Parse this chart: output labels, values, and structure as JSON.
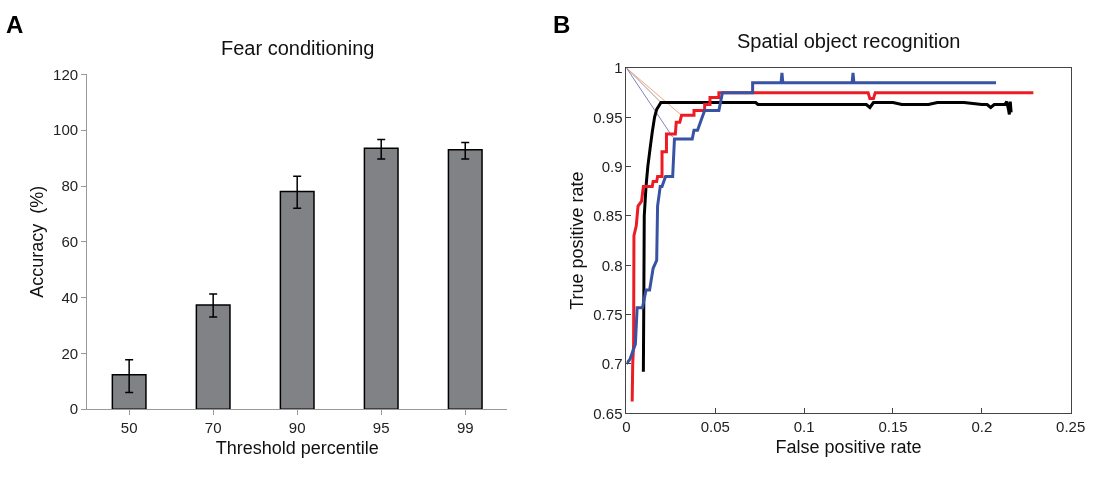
{
  "chart_data": [
    {
      "type": "bar",
      "title": "Fear conditioning",
      "xlabel": "Threshold percentile",
      "ylabel": "Accuracy  (%)",
      "annotations": [
        "A"
      ],
      "categories": [
        "50",
        "70",
        "90",
        "95",
        "99"
      ],
      "values": [
        12.3,
        37.3,
        78,
        93.5,
        93
      ],
      "color": "#808285",
      "errors": [
        [
          6,
          17.7
        ],
        [
          33,
          41.3
        ],
        [
          72,
          83.5
        ],
        [
          89.7,
          96.7
        ],
        [
          89.7,
          95.6
        ]
      ],
      "ylim": [
        0,
        120
      ],
      "yticks": [
        0,
        20,
        40,
        60,
        80,
        100,
        120
      ]
    },
    {
      "type": "line",
      "title": "Spatial object recognition",
      "xlabel": "False positive rate",
      "ylabel": "True positive rate",
      "annotations": [
        "B"
      ],
      "series": [
        {
          "color": "#999999",
          "x": [
            0,
            0.0194
          ],
          "values": [
            1,
            0.965
          ]
        },
        {
          "color": "#f4a582",
          "x": [
            0,
            0.031
          ],
          "values": [
            1,
            0.952
          ]
        },
        {
          "color": "#8080c0",
          "x": [
            0,
            0.026
          ],
          "values": [
            1,
            0.93
          ]
        },
        {
          "color": "#000000",
          "x": [
            0.0095,
            0.0098,
            0.01,
            0.011,
            0.012,
            0.0134,
            0.0145,
            0.0158,
            0.017,
            0.0194,
            0.05,
            0.0727,
            0.074,
            0.1,
            0.135,
            0.137,
            0.139,
            0.15,
            0.155,
            0.17,
            0.175,
            0.19,
            0.2,
            0.203,
            0.205,
            0.207,
            0.21,
            0.213,
            0.214,
            0.215,
            0.2155,
            0.216,
            0.2165
          ],
          "values": [
            0.692,
            0.78,
            0.85,
            0.88,
            0.9,
            0.92,
            0.935,
            0.95,
            0.958,
            0.965,
            0.965,
            0.965,
            0.963,
            0.963,
            0.963,
            0.96,
            0.965,
            0.965,
            0.963,
            0.963,
            0.965,
            0.965,
            0.963,
            0.963,
            0.96,
            0.963,
            0.963,
            0.963,
            0.966,
            0.958,
            0.953,
            0.966,
            0.955
          ]
        },
        {
          "color": "#ed1c24",
          "x": [
            0.0032,
            0.0035,
            0.004,
            0.0042,
            0.0055,
            0.0065,
            0.0085,
            0.0095,
            0.0145,
            0.015,
            0.017,
            0.0175,
            0.02,
            0.02,
            0.0225,
            0.0225,
            0.0275,
            0.028,
            0.03,
            0.031,
            0.038,
            0.038,
            0.044,
            0.044,
            0.047,
            0.047,
            0.052,
            0.052,
            0.136,
            0.137,
            0.139,
            0.14,
            0.229
          ],
          "values": [
            0.662,
            0.7,
            0.72,
            0.83,
            0.84,
            0.86,
            0.865,
            0.88,
            0.88,
            0.885,
            0.885,
            0.89,
            0.89,
            0.915,
            0.915,
            0.933,
            0.933,
            0.945,
            0.945,
            0.952,
            0.952,
            0.957,
            0.957,
            0.963,
            0.963,
            0.97,
            0.97,
            0.975,
            0.975,
            0.969,
            0.969,
            0.975,
            0.975
          ]
        },
        {
          "color": "#3953a4",
          "x": [
            0,
            0.002,
            0.005,
            0.006,
            0.009,
            0.011,
            0.013,
            0.015,
            0.017,
            0.0175,
            0.019,
            0.02,
            0.022,
            0.026,
            0.027,
            0.037,
            0.038,
            0.04,
            0.042,
            0.044,
            0.052,
            0.054,
            0.071,
            0.071,
            0.087,
            0.0875,
            0.088,
            0.127,
            0.1275,
            0.128,
            0.208
          ],
          "values": [
            0.7,
            0.705,
            0.72,
            0.757,
            0.757,
            0.775,
            0.775,
            0.797,
            0.805,
            0.86,
            0.88,
            0.88,
            0.89,
            0.89,
            0.928,
            0.928,
            0.937,
            0.937,
            0.947,
            0.957,
            0.957,
            0.975,
            0.975,
            0.985,
            0.985,
            0.995,
            0.985,
            0.985,
            0.995,
            0.985,
            0.985
          ]
        }
      ],
      "xlim": [
        0,
        0.25
      ],
      "xticks": [
        0,
        0.05,
        0.1,
        0.15,
        0.2,
        0.25
      ],
      "ylim": [
        0.65,
        1
      ],
      "yticks": [
        0.65,
        0.7,
        0.75,
        0.8,
        0.85,
        0.9,
        0.95,
        1
      ],
      "marker": "none",
      "line_style": "solid"
    }
  ]
}
